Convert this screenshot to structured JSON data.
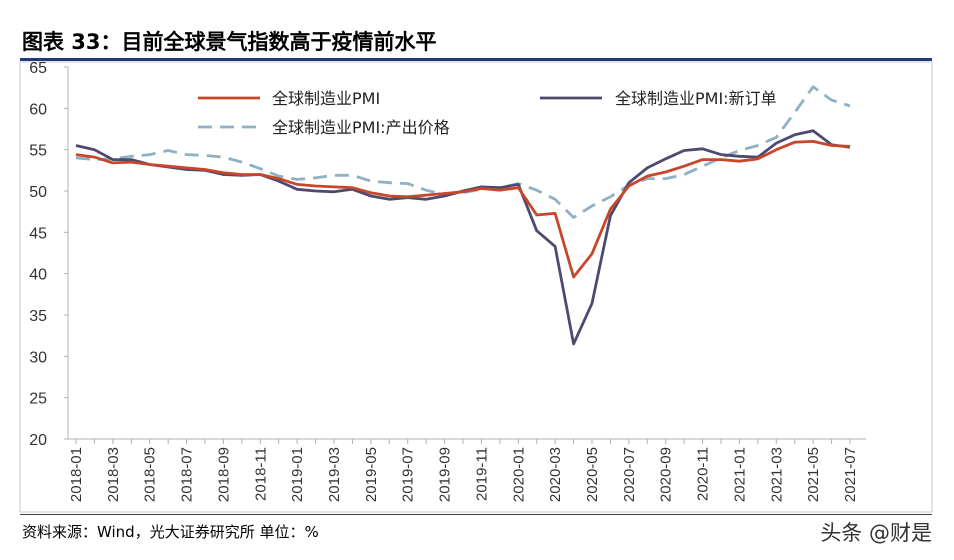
{
  "header": {
    "title": "图表 33：目前全球景气指数高于疫情前水平"
  },
  "footer": {
    "source": "资料来源：Wind，光大证券研究所   单位：%",
    "watermark": "头条 @财是"
  },
  "colors": {
    "pmi": "#c8472b",
    "new_orders": "#4d4a70",
    "output_price": "#8eb1c4",
    "axis": "#b0b0b0",
    "title_rule": "#1f3a7a"
  },
  "chart_data": {
    "type": "line",
    "title": "图表 33：目前全球景气指数高于疫情前水平",
    "xlabel": "",
    "ylabel": "",
    "ylim": [
      20,
      65
    ],
    "yticks": [
      20,
      25,
      30,
      35,
      40,
      45,
      50,
      55,
      60,
      65
    ],
    "legend_position": "top",
    "x": [
      "2018-01",
      "2018-02",
      "2018-03",
      "2018-04",
      "2018-05",
      "2018-06",
      "2018-07",
      "2018-08",
      "2018-09",
      "2018-10",
      "2018-11",
      "2018-12",
      "2019-01",
      "2019-02",
      "2019-03",
      "2019-04",
      "2019-05",
      "2019-06",
      "2019-07",
      "2019-08",
      "2019-09",
      "2019-10",
      "2019-11",
      "2019-12",
      "2020-01",
      "2020-02",
      "2020-03",
      "2020-04",
      "2020-05",
      "2020-06",
      "2020-07",
      "2020-08",
      "2020-09",
      "2020-10",
      "2020-11",
      "2020-12",
      "2021-01",
      "2021-02",
      "2021-03",
      "2021-04",
      "2021-05",
      "2021-06",
      "2021-07"
    ],
    "xtick_labels": [
      "2018-01",
      "2018-03",
      "2018-05",
      "2018-07",
      "2018-09",
      "2018-11",
      "2019-01",
      "2019-03",
      "2019-05",
      "2019-07",
      "2019-09",
      "2019-11",
      "2020-01",
      "2020-03",
      "2020-05",
      "2020-07",
      "2020-09",
      "2020-11",
      "2021-01",
      "2021-03",
      "2021-05",
      "2021-07"
    ],
    "series": [
      {
        "name": "全球制造业PMI",
        "style": "solid",
        "color": "#c8472b",
        "values": [
          54.4,
          54.1,
          53.4,
          53.5,
          53.2,
          53.0,
          52.8,
          52.6,
          52.2,
          52.0,
          52.0,
          51.5,
          50.8,
          50.6,
          50.5,
          50.4,
          49.8,
          49.4,
          49.3,
          49.5,
          49.7,
          49.9,
          50.3,
          50.1,
          50.4,
          47.1,
          47.3,
          39.6,
          42.4,
          47.8,
          50.6,
          51.8,
          52.3,
          53.0,
          53.8,
          53.8,
          53.6,
          53.9,
          55.0,
          55.9,
          56.0,
          55.5,
          55.4
        ]
      },
      {
        "name": "全球制造业PMI:新订单",
        "style": "solid",
        "color": "#4d4a70",
        "values": [
          55.5,
          55.0,
          53.8,
          53.8,
          53.2,
          52.9,
          52.6,
          52.5,
          52.0,
          51.9,
          52.0,
          51.2,
          50.2,
          50.0,
          49.9,
          50.2,
          49.4,
          49.0,
          49.2,
          49.0,
          49.4,
          50.0,
          50.5,
          50.4,
          50.8,
          45.2,
          43.3,
          31.5,
          36.4,
          47.0,
          51.0,
          52.8,
          53.9,
          54.9,
          55.1,
          54.4,
          54.2,
          54.1,
          55.8,
          56.8,
          57.3,
          55.6,
          55.3
        ]
      },
      {
        "name": "全球制造业PMI:产出价格",
        "style": "dashed",
        "color": "#8eb1c4",
        "values": [
          54.0,
          53.8,
          53.9,
          54.2,
          54.4,
          54.9,
          54.4,
          54.3,
          54.1,
          53.5,
          52.7,
          51.8,
          51.4,
          51.6,
          51.9,
          51.9,
          51.2,
          51.0,
          50.9,
          50.1,
          49.6,
          49.8,
          50.2,
          50.4,
          50.9,
          50.1,
          49.0,
          46.8,
          48.2,
          49.3,
          50.7,
          51.5,
          51.5,
          52.0,
          53.0,
          54.0,
          54.9,
          55.5,
          56.5,
          59.5,
          62.6,
          61.0,
          60.3
        ]
      }
    ]
  }
}
